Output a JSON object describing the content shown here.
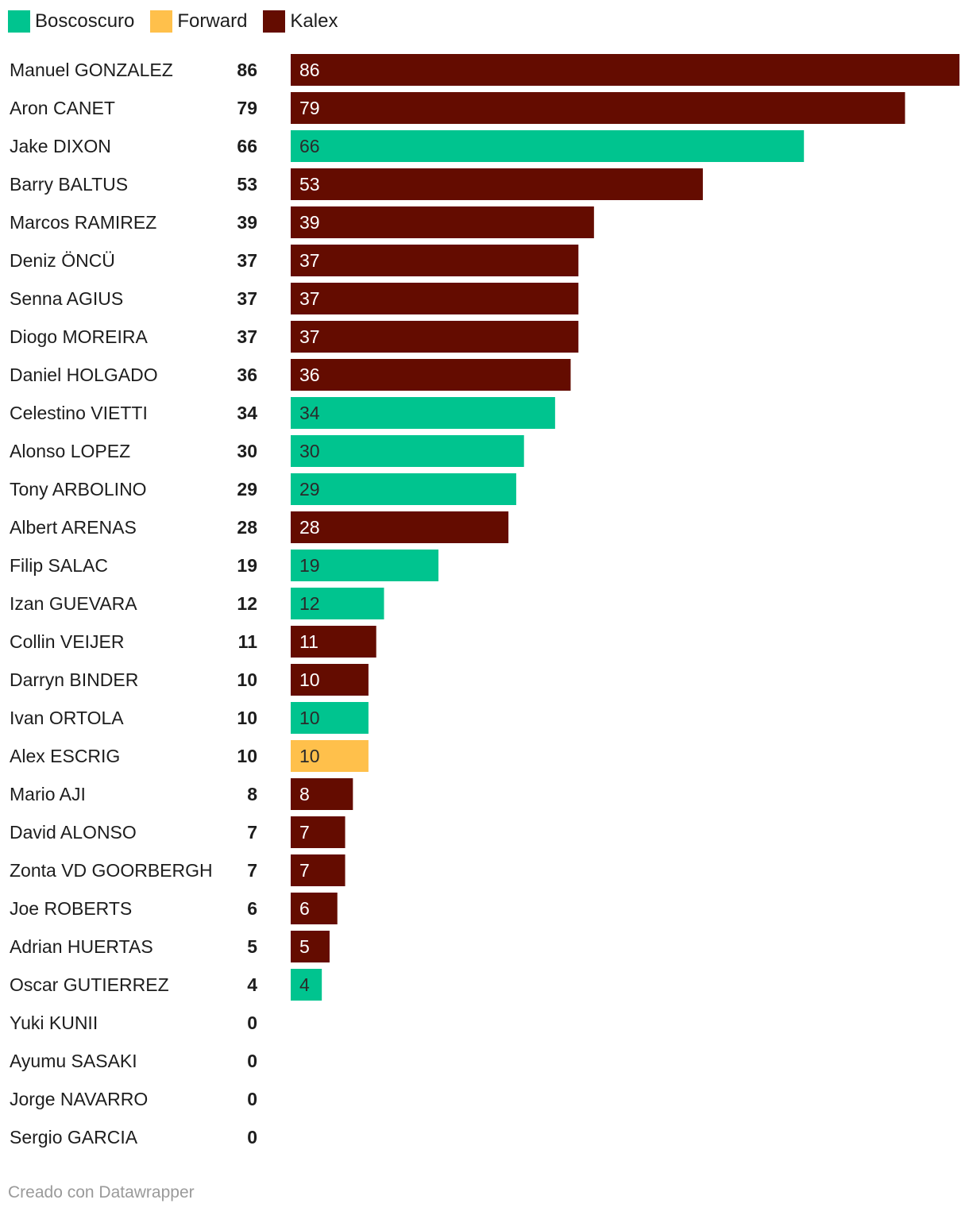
{
  "chart_data": {
    "type": "bar",
    "orientation": "horizontal",
    "categories": [
      "Manuel GONZALEZ",
      "Aron CANET",
      "Jake DIXON",
      "Barry BALTUS",
      "Marcos RAMIREZ",
      "Deniz ÖNCÜ",
      "Senna AGIUS",
      "Diogo MOREIRA",
      "Daniel HOLGADO",
      "Celestino VIETTI",
      "Alonso LOPEZ",
      "Tony ARBOLINO",
      "Albert ARENAS",
      "Filip SALAC",
      "Izan GUEVARA",
      "Collin VEIJER",
      "Darryn BINDER",
      "Ivan ORTOLA",
      "Alex ESCRIG",
      "Mario AJI",
      "David ALONSO",
      "Zonta VD GOORBERGH",
      "Joe ROBERTS",
      "Adrian HUERTAS",
      "Oscar GUTIERREZ",
      "Yuki KUNII",
      "Ayumu SASAKI",
      "Jorge NAVARRO",
      "Sergio GARCIA"
    ],
    "values": [
      86,
      79,
      66,
      53,
      39,
      37,
      37,
      37,
      36,
      34,
      30,
      29,
      28,
      19,
      12,
      11,
      10,
      10,
      10,
      8,
      7,
      7,
      6,
      5,
      4,
      0,
      0,
      0,
      0
    ],
    "groups": [
      "Kalex",
      "Kalex",
      "Boscoscuro",
      "Kalex",
      "Kalex",
      "Kalex",
      "Kalex",
      "Kalex",
      "Kalex",
      "Boscoscuro",
      "Boscoscuro",
      "Boscoscuro",
      "Kalex",
      "Boscoscuro",
      "Boscoscuro",
      "Kalex",
      "Kalex",
      "Boscoscuro",
      "Forward",
      "Kalex",
      "Kalex",
      "Kalex",
      "Kalex",
      "Kalex",
      "Boscoscuro",
      "",
      "",
      "",
      ""
    ],
    "legend": [
      {
        "name": "Boscoscuro",
        "color": "#00c48f"
      },
      {
        "name": "Forward",
        "color": "#ffc04b"
      },
      {
        "name": "Kalex",
        "color": "#640c00"
      }
    ],
    "xlim": [
      0,
      86
    ],
    "grid": false,
    "legend_position": "top-left",
    "title": "",
    "xlabel": "",
    "ylabel": ""
  },
  "footer": "Creado con Datawrapper"
}
